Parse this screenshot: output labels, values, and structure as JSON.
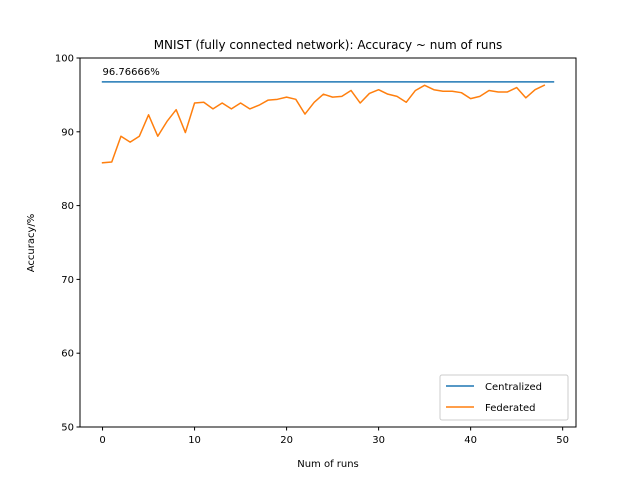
{
  "chart_data": {
    "type": "line",
    "title": "MNIST (fully connected network): Accuracy ~ num of runs",
    "xlabel": "Num of runs",
    "ylabel": "Accuracy/%",
    "xlim": [
      -2.45,
      51.45
    ],
    "ylim": [
      50,
      100
    ],
    "xticks": [
      0,
      10,
      20,
      30,
      40,
      50
    ],
    "yticks": [
      50,
      60,
      70,
      80,
      90,
      100
    ],
    "grid": false,
    "legend_position": "lower-right",
    "annotation": {
      "text": "96.76666%",
      "x": 0,
      "y": 97.7
    },
    "series": [
      {
        "name": "Centralized",
        "color": "#1f77b4",
        "x": [
          0,
          49
        ],
        "y": [
          96.76666,
          96.76666
        ]
      },
      {
        "name": "Federated",
        "color": "#ff7f0e",
        "x": [
          0,
          1,
          2,
          3,
          4,
          5,
          6,
          7,
          8,
          9,
          10,
          11,
          12,
          13,
          14,
          15,
          16,
          17,
          18,
          19,
          20,
          21,
          22,
          23,
          24,
          25,
          26,
          27,
          28,
          29,
          30,
          31,
          32,
          33,
          34,
          35,
          36,
          37,
          38,
          39,
          40,
          41,
          42,
          43,
          44,
          45,
          46,
          47,
          48
        ],
        "y": [
          85.8,
          85.9,
          89.4,
          88.6,
          89.4,
          92.3,
          89.4,
          91.4,
          93.0,
          89.9,
          93.9,
          94.0,
          93.1,
          93.9,
          93.1,
          93.9,
          93.1,
          93.6,
          94.3,
          94.4,
          94.7,
          94.4,
          92.4,
          94.0,
          95.1,
          94.7,
          94.8,
          95.6,
          93.9,
          95.2,
          95.7,
          95.1,
          94.8,
          94.0,
          95.6,
          96.3,
          95.7,
          95.5,
          95.5,
          95.3,
          94.5,
          94.8,
          95.6,
          95.4,
          95.4,
          96.0,
          94.6,
          95.7,
          96.3
        ]
      }
    ]
  }
}
